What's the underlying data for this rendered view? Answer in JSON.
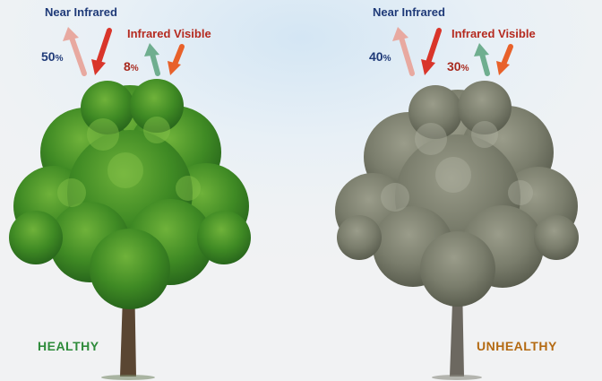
{
  "panels": [
    {
      "status_label": "HEALTHY",
      "near_infrared_label": "Near Infrared",
      "near_infrared_value": "50",
      "infrared_visible_label": "Infrared Visible",
      "infrared_visible_value": "8",
      "percent_sign": "%"
    },
    {
      "status_label": "UNHEALTHY",
      "near_infrared_label": "Near Infrared",
      "near_infrared_value": "40",
      "infrared_visible_label": "Infrared Visible",
      "infrared_visible_value": "30",
      "percent_sign": "%"
    }
  ],
  "colors": {
    "healthy_foliage": "#3f8a24",
    "unhealthy_foliage": "#7a7d6c",
    "reflected_nir_arrow": "#e8a9a0",
    "incoming_nir_arrow": "#d9352a",
    "reflected_visible_arrow": "#6fae8f",
    "incoming_visible_arrow": "#e8612a"
  }
}
